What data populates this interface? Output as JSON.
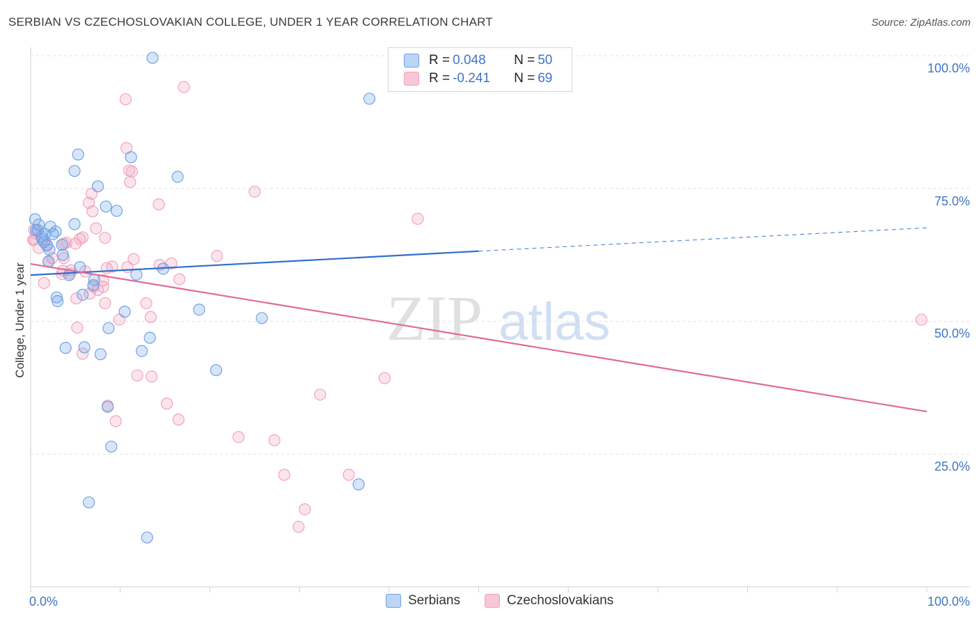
{
  "title": "SERBIAN VS CZECHOSLOVAKIAN COLLEGE, UNDER 1 YEAR CORRELATION CHART",
  "source": "Source: ZipAtlas.com",
  "watermark": {
    "zip": "ZIP",
    "atlas": "atlas"
  },
  "legend_top": {
    "serbians": {
      "r_label": "R = ",
      "r_value": "0.048",
      "n_label": "N = ",
      "n_value": "50"
    },
    "czech": {
      "r_label": "R = ",
      "r_value": "-0.241",
      "n_label": "N = ",
      "n_value": "69"
    }
  },
  "legend_bottom": {
    "serbians": "Serbians",
    "czech": "Czechoslovakians"
  },
  "colors": {
    "blue": "#6fa3e6",
    "blue_line": "#2f6fcc",
    "pink": "#f0a3bd",
    "pink_line": "#e06a95",
    "axis_text": "#3f74c6"
  },
  "chart_data": {
    "type": "scatter",
    "title": "SERBIAN VS CZECHOSLOVAKIAN COLLEGE, UNDER 1 YEAR CORRELATION CHART",
    "xlabel": "",
    "ylabel": "College, Under 1 year",
    "xlim": [
      0,
      100
    ],
    "ylim": [
      0,
      100
    ],
    "x_tick_labels": [
      "0.0%",
      "100.0%"
    ],
    "y_tick_labels": [
      "100.0%",
      "75.0%",
      "50.0%",
      "25.0%"
    ],
    "y_tick_values": [
      100,
      75,
      50,
      25
    ],
    "series": [
      {
        "name": "Serbians",
        "r": 0.048,
        "n": 50,
        "trend": {
          "x0": 0,
          "y0": 58.7,
          "x1": 50,
          "y1": 63.2,
          "dashed_to": {
            "x": 100,
            "y": 67.6
          }
        },
        "points": [
          [
            13.6,
            99.6
          ],
          [
            37.8,
            91.9
          ],
          [
            5.3,
            81.4
          ],
          [
            11.2,
            80.9
          ],
          [
            4.9,
            78.3
          ],
          [
            16.4,
            77.2
          ],
          [
            7.5,
            75.4
          ],
          [
            8.4,
            71.6
          ],
          [
            9.6,
            70.8
          ],
          [
            0.5,
            69.2
          ],
          [
            0.9,
            68.2
          ],
          [
            2.2,
            67.8
          ],
          [
            4.9,
            68.3
          ],
          [
            0.8,
            67.2
          ],
          [
            1.6,
            66.4
          ],
          [
            2.5,
            66.4
          ],
          [
            1.3,
            65.4
          ],
          [
            1.5,
            64.9
          ],
          [
            1.8,
            64.4
          ],
          [
            3.5,
            64.4
          ],
          [
            2.1,
            63.5
          ],
          [
            3.6,
            62.5
          ],
          [
            2.0,
            61.2
          ],
          [
            5.5,
            60.2
          ],
          [
            14.8,
            59.9
          ],
          [
            11.8,
            58.8
          ],
          [
            4.3,
            58.7
          ],
          [
            7.1,
            57.8
          ],
          [
            7.0,
            56.8
          ],
          [
            5.8,
            55.0
          ],
          [
            2.9,
            54.5
          ],
          [
            3.0,
            53.8
          ],
          [
            18.8,
            52.2
          ],
          [
            10.5,
            51.8
          ],
          [
            25.8,
            50.6
          ],
          [
            8.7,
            48.7
          ],
          [
            13.3,
            46.9
          ],
          [
            3.9,
            45.0
          ],
          [
            6.0,
            45.1
          ],
          [
            12.4,
            44.4
          ],
          [
            7.8,
            43.8
          ],
          [
            20.7,
            40.8
          ],
          [
            8.6,
            33.9
          ],
          [
            9.0,
            26.4
          ],
          [
            36.6,
            19.3
          ],
          [
            6.5,
            15.9
          ],
          [
            13.0,
            9.3
          ],
          [
            1.2,
            66.0
          ],
          [
            2.8,
            66.9
          ],
          [
            0.6,
            67.1
          ]
        ]
      },
      {
        "name": "Czechoslovakians",
        "r": -0.241,
        "n": 69,
        "trend": {
          "x0": 0,
          "y0": 60.8,
          "x1": 100,
          "y1": 33.0
        },
        "points": [
          [
            17.1,
            94.1
          ],
          [
            10.6,
            91.8
          ],
          [
            10.7,
            82.6
          ],
          [
            11.0,
            78.4
          ],
          [
            11.3,
            78.2
          ],
          [
            11.1,
            76.2
          ],
          [
            25.0,
            74.4
          ],
          [
            6.8,
            74.0
          ],
          [
            14.3,
            72.0
          ],
          [
            6.5,
            72.3
          ],
          [
            6.9,
            70.7
          ],
          [
            43.2,
            69.3
          ],
          [
            7.3,
            67.5
          ],
          [
            0.4,
            67.2
          ],
          [
            0.6,
            66.5
          ],
          [
            8.3,
            65.7
          ],
          [
            5.8,
            65.8
          ],
          [
            5.5,
            65.5
          ],
          [
            0.4,
            65.4
          ],
          [
            5.0,
            64.6
          ],
          [
            3.7,
            64.6
          ],
          [
            1.8,
            64.2
          ],
          [
            0.9,
            63.8
          ],
          [
            20.8,
            62.3
          ],
          [
            11.5,
            61.7
          ],
          [
            3.7,
            61.9
          ],
          [
            2.0,
            61.3
          ],
          [
            15.7,
            60.9
          ],
          [
            14.4,
            60.6
          ],
          [
            10.8,
            60.2
          ],
          [
            8.5,
            60.0
          ],
          [
            3.6,
            59.5
          ],
          [
            4.5,
            59.6
          ],
          [
            6.1,
            59.4
          ],
          [
            4.4,
            59.0
          ],
          [
            3.5,
            58.9
          ],
          [
            16.6,
            57.9
          ],
          [
            8.1,
            57.7
          ],
          [
            1.5,
            57.2
          ],
          [
            8.1,
            56.5
          ],
          [
            7.5,
            55.9
          ],
          [
            6.6,
            55.2
          ],
          [
            5.1,
            54.3
          ],
          [
            12.9,
            53.4
          ],
          [
            8.3,
            53.4
          ],
          [
            13.4,
            50.8
          ],
          [
            9.9,
            50.3
          ],
          [
            99.4,
            50.3
          ],
          [
            5.2,
            48.8
          ],
          [
            5.8,
            43.9
          ],
          [
            39.5,
            39.3
          ],
          [
            11.9,
            39.8
          ],
          [
            13.5,
            39.6
          ],
          [
            32.3,
            36.2
          ],
          [
            15.2,
            34.5
          ],
          [
            8.6,
            34.1
          ],
          [
            9.5,
            31.2
          ],
          [
            16.5,
            31.5
          ],
          [
            23.2,
            28.2
          ],
          [
            27.2,
            27.6
          ],
          [
            28.3,
            21.1
          ],
          [
            35.5,
            21.1
          ],
          [
            30.6,
            14.6
          ],
          [
            29.9,
            11.3
          ],
          [
            0.3,
            65.3
          ],
          [
            2.4,
            61.9
          ],
          [
            4.0,
            64.8
          ],
          [
            7.0,
            56.5
          ],
          [
            9.1,
            60.3
          ]
        ]
      }
    ]
  }
}
